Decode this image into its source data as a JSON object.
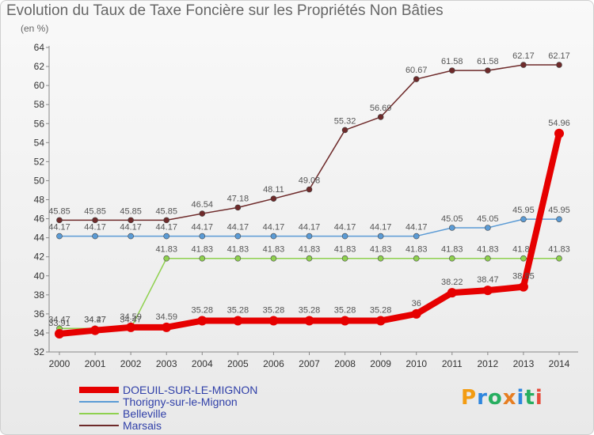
{
  "chart_data": {
    "type": "line",
    "title": "Evolution du Taux de Taxe Foncière sur les Propriétés Non Bâties",
    "unit": "(en %)",
    "x": [
      "2000",
      "2001",
      "2002",
      "2003",
      "2004",
      "2005",
      "2006",
      "2007",
      "2008",
      "2009",
      "2010",
      "2011",
      "2012",
      "2013",
      "2014"
    ],
    "ylim": [
      32,
      64
    ],
    "yticks": [
      32,
      34,
      36,
      38,
      40,
      42,
      44,
      46,
      48,
      50,
      52,
      54,
      56,
      58,
      60,
      62,
      64
    ],
    "grid": false,
    "legend_placement": "bottom-left",
    "series": [
      {
        "name": "DOEUIL-SUR-LE-MIGNON",
        "color": "#e60000",
        "values": [
          33.91,
          34.27,
          34.59,
          34.59,
          35.28,
          35.28,
          35.28,
          35.28,
          35.28,
          35.28,
          36,
          38.22,
          38.47,
          38.85,
          54.96
        ],
        "labels": [
          "33.91",
          "34.27",
          "34.59",
          "34.59",
          "35.28",
          "35.28",
          "35.28",
          "35.28",
          "35.28",
          "35.28",
          "36",
          "38.22",
          "38.47",
          "38.85",
          "54.96"
        ]
      },
      {
        "name": "Thorigny-sur-le-Mignon",
        "color": "#5b9bd5",
        "values": [
          44.17,
          44.17,
          44.17,
          44.17,
          44.17,
          44.17,
          44.17,
          44.17,
          44.17,
          44.17,
          44.17,
          45.05,
          45.05,
          45.95,
          45.95
        ],
        "labels": [
          "44.17",
          "44.17",
          "44.17",
          "44.17",
          "44.17",
          "44.17",
          "44.17",
          "44.17",
          "44.17",
          "44.17",
          "44.17",
          "45.05",
          "45.05",
          "45.95",
          "45.95"
        ]
      },
      {
        "name": "Belleville",
        "color": "#8fd14f",
        "values": [
          34.47,
          34.47,
          34.47,
          41.83,
          41.83,
          41.83,
          41.83,
          41.83,
          41.83,
          41.83,
          41.83,
          41.83,
          41.83,
          41.83,
          41.83
        ],
        "labels": [
          "34.47",
          "34.47",
          "34.47",
          "41.83",
          "41.83",
          "41.83",
          "41.83",
          "41.83",
          "41.83",
          "41.83",
          "41.83",
          "41.83",
          "41.83",
          "41.83",
          "41.83"
        ]
      },
      {
        "name": "Marsais",
        "color": "#6e2a2a",
        "values": [
          45.85,
          45.85,
          45.85,
          45.85,
          46.54,
          47.18,
          48.11,
          49.08,
          55.32,
          56.69,
          60.67,
          61.58,
          61.58,
          62.17,
          62.17
        ],
        "labels": [
          "45.85",
          "45.85",
          "45.85",
          "45.85",
          "46.54",
          "47.18",
          "48.11",
          "49.08",
          "55.32",
          "56.69",
          "60.67",
          "61.58",
          "61.58",
          "62.17",
          "62.17"
        ]
      }
    ]
  },
  "logo": {
    "text": "Proxiti"
  }
}
